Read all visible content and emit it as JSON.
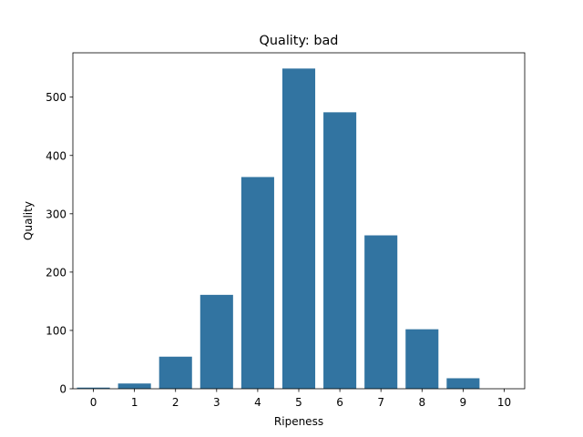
{
  "chart_data": {
    "type": "bar",
    "title": "Quality: bad",
    "xlabel": "Ripeness",
    "ylabel": "Quality",
    "categories": [
      "0",
      "1",
      "2",
      "3",
      "4",
      "5",
      "6",
      "7",
      "8",
      "9",
      "10"
    ],
    "values": [
      2,
      9,
      55,
      161,
      363,
      549,
      474,
      263,
      102,
      18,
      0
    ],
    "yticks": [
      0,
      100,
      200,
      300,
      400,
      500
    ],
    "ylim": [
      0,
      576
    ],
    "bar_color": "#3274a1",
    "grid": false,
    "legend": "none"
  }
}
